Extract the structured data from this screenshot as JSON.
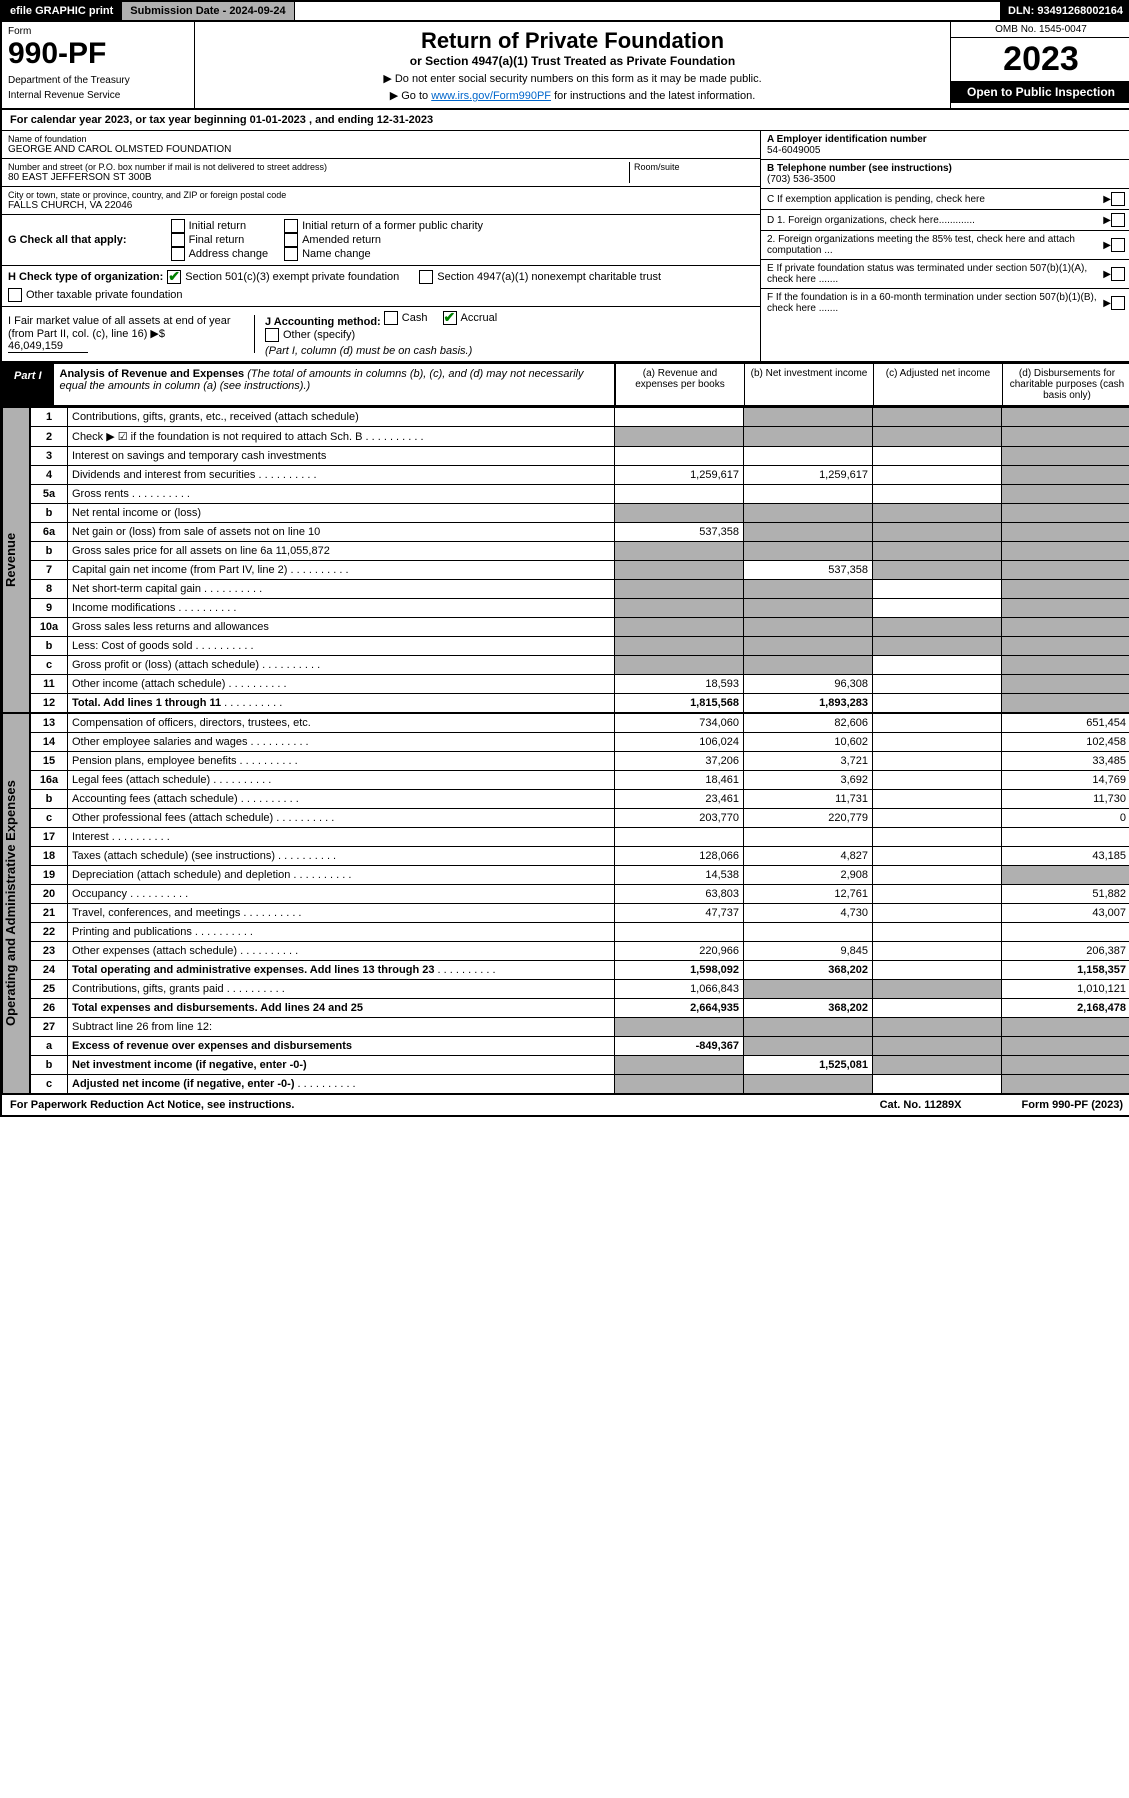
{
  "top": {
    "efile": "efile GRAPHIC print",
    "subdate": "Submission Date - 2024-09-24",
    "dln": "DLN: 93491268002164"
  },
  "header": {
    "form": "Form",
    "num": "990-PF",
    "dept": "Department of the Treasury",
    "irs": "Internal Revenue Service",
    "title": "Return of Private Foundation",
    "sub": "or Section 4947(a)(1) Trust Treated as Private Foundation",
    "note1": "▶ Do not enter social security numbers on this form as it may be made public.",
    "note2": "▶ Go to ",
    "link": "www.irs.gov/Form990PF",
    "note3": " for instructions and the latest information.",
    "omb": "OMB No. 1545-0047",
    "year": "2023",
    "open": "Open to Public Inspection"
  },
  "cal": "For calendar year 2023, or tax year beginning 01-01-2023                         , and ending 12-31-2023",
  "info": {
    "name_label": "Name of foundation",
    "name": "GEORGE AND CAROL OLMSTED FOUNDATION",
    "addr_label": "Number and street (or P.O. box number if mail is not delivered to street address)",
    "addr": "80 EAST JEFFERSON ST 300B",
    "room": "Room/suite",
    "city_label": "City or town, state or province, country, and ZIP or foreign postal code",
    "city": "FALLS CHURCH, VA  22046",
    "ein_label": "A Employer identification number",
    "ein": "54-6049005",
    "tel_label": "B Telephone number (see instructions)",
    "tel": "(703) 536-3500",
    "c": "C If exemption application is pending, check here",
    "d1": "D 1. Foreign organizations, check here.............",
    "d2": "2. Foreign organizations meeting the 85% test, check here and attach computation ...",
    "e": "E If private foundation status was terminated under section 507(b)(1)(A), check here .......",
    "f": "F If the foundation is in a 60-month termination under section 507(b)(1)(B), check here ......."
  },
  "g": {
    "label": "G Check all that apply:",
    "o1": "Initial return",
    "o2": "Final return",
    "o3": "Address change",
    "o4": "Initial return of a former public charity",
    "o5": "Amended return",
    "o6": "Name change"
  },
  "h": {
    "label": "H Check type of organization:",
    "o1": "Section 501(c)(3) exempt private foundation",
    "o2": "Section 4947(a)(1) nonexempt charitable trust",
    "o3": "Other taxable private foundation"
  },
  "i": {
    "label": "I Fair market value of all assets at end of year (from Part II, col. (c), line 16) ▶$",
    "val": "46,049,159"
  },
  "j": {
    "label": "J Accounting method:",
    "o1": "Cash",
    "o2": "Accrual",
    "o3": "Other (specify)",
    "note": "(Part I, column (d) must be on cash basis.)"
  },
  "part1": {
    "tag": "Part I",
    "title": "Analysis of Revenue and Expenses",
    "note": "(The total of amounts in columns (b), (c), and (d) may not necessarily equal the amounts in column (a) (see instructions).)",
    "ca": "(a)  Revenue and expenses per books",
    "cb": "(b)  Net investment income",
    "cc": "(c)  Adjusted net income",
    "cd": "(d)  Disbursements for charitable purposes (cash basis only)"
  },
  "sides": {
    "rev": "Revenue",
    "exp": "Operating and Administrative Expenses"
  },
  "rows": [
    {
      "n": "1",
      "d": "Contributions, gifts, grants, etc., received (attach schedule)",
      "a": "",
      "b": "g",
      "c": "g",
      "dd": "g"
    },
    {
      "n": "2",
      "d": "Check ▶ ☑ if the foundation is not required to attach Sch. B",
      "a": "g",
      "b": "g",
      "c": "g",
      "dd": "g",
      "dots": true
    },
    {
      "n": "3",
      "d": "Interest on savings and temporary cash investments",
      "a": "",
      "b": "",
      "c": "",
      "dd": "g"
    },
    {
      "n": "4",
      "d": "Dividends and interest from securities",
      "a": "1,259,617",
      "b": "1,259,617",
      "c": "",
      "dd": "g",
      "dots": true
    },
    {
      "n": "5a",
      "d": "Gross rents",
      "a": "",
      "b": "",
      "c": "",
      "dd": "g",
      "dots": true
    },
    {
      "n": "b",
      "d": "Net rental income or (loss)",
      "a": "g",
      "b": "g",
      "c": "g",
      "dd": "g"
    },
    {
      "n": "6a",
      "d": "Net gain or (loss) from sale of assets not on line 10",
      "a": "537,358",
      "b": "g",
      "c": "g",
      "dd": "g"
    },
    {
      "n": "b",
      "d": "Gross sales price for all assets on line 6a           11,055,872",
      "a": "g",
      "b": "g",
      "c": "g",
      "dd": "g"
    },
    {
      "n": "7",
      "d": "Capital gain net income (from Part IV, line 2)",
      "a": "g",
      "b": "537,358",
      "c": "g",
      "dd": "g",
      "dots": true
    },
    {
      "n": "8",
      "d": "Net short-term capital gain",
      "a": "g",
      "b": "g",
      "c": "",
      "dd": "g",
      "dots": true
    },
    {
      "n": "9",
      "d": "Income modifications",
      "a": "g",
      "b": "g",
      "c": "",
      "dd": "g",
      "dots": true
    },
    {
      "n": "10a",
      "d": "Gross sales less returns and allowances",
      "a": "g",
      "b": "g",
      "c": "g",
      "dd": "g"
    },
    {
      "n": "b",
      "d": "Less: Cost of goods sold",
      "a": "g",
      "b": "g",
      "c": "g",
      "dd": "g",
      "dots": true
    },
    {
      "n": "c",
      "d": "Gross profit or (loss) (attach schedule)",
      "a": "g",
      "b": "g",
      "c": "",
      "dd": "g",
      "dots": true
    },
    {
      "n": "11",
      "d": "Other income (attach schedule)",
      "a": "18,593",
      "b": "96,308",
      "c": "",
      "dd": "g",
      "dots": true
    },
    {
      "n": "12",
      "d": "Total. Add lines 1 through 11",
      "a": "1,815,568",
      "b": "1,893,283",
      "c": "",
      "dd": "g",
      "dots": true,
      "bold": true
    }
  ],
  "exprows": [
    {
      "n": "13",
      "d": "Compensation of officers, directors, trustees, etc.",
      "a": "734,060",
      "b": "82,606",
      "c": "",
      "dd": "651,454"
    },
    {
      "n": "14",
      "d": "Other employee salaries and wages",
      "a": "106,024",
      "b": "10,602",
      "c": "",
      "dd": "102,458",
      "dots": true
    },
    {
      "n": "15",
      "d": "Pension plans, employee benefits",
      "a": "37,206",
      "b": "3,721",
      "c": "",
      "dd": "33,485",
      "dots": true
    },
    {
      "n": "16a",
      "d": "Legal fees (attach schedule)",
      "a": "18,461",
      "b": "3,692",
      "c": "",
      "dd": "14,769",
      "dots": true
    },
    {
      "n": "b",
      "d": "Accounting fees (attach schedule)",
      "a": "23,461",
      "b": "11,731",
      "c": "",
      "dd": "11,730",
      "dots": true
    },
    {
      "n": "c",
      "d": "Other professional fees (attach schedule)",
      "a": "203,770",
      "b": "220,779",
      "c": "",
      "dd": "0",
      "dots": true
    },
    {
      "n": "17",
      "d": "Interest",
      "a": "",
      "b": "",
      "c": "",
      "dd": "",
      "dots": true
    },
    {
      "n": "18",
      "d": "Taxes (attach schedule) (see instructions)",
      "a": "128,066",
      "b": "4,827",
      "c": "",
      "dd": "43,185",
      "dots": true
    },
    {
      "n": "19",
      "d": "Depreciation (attach schedule) and depletion",
      "a": "14,538",
      "b": "2,908",
      "c": "",
      "dd": "g",
      "dots": true
    },
    {
      "n": "20",
      "d": "Occupancy",
      "a": "63,803",
      "b": "12,761",
      "c": "",
      "dd": "51,882",
      "dots": true
    },
    {
      "n": "21",
      "d": "Travel, conferences, and meetings",
      "a": "47,737",
      "b": "4,730",
      "c": "",
      "dd": "43,007",
      "dots": true
    },
    {
      "n": "22",
      "d": "Printing and publications",
      "a": "",
      "b": "",
      "c": "",
      "dd": "",
      "dots": true
    },
    {
      "n": "23",
      "d": "Other expenses (attach schedule)",
      "a": "220,966",
      "b": "9,845",
      "c": "",
      "dd": "206,387",
      "dots": true
    },
    {
      "n": "24",
      "d": "Total operating and administrative expenses. Add lines 13 through 23",
      "a": "1,598,092",
      "b": "368,202",
      "c": "",
      "dd": "1,158,357",
      "dots": true,
      "bold": true
    },
    {
      "n": "25",
      "d": "Contributions, gifts, grants paid",
      "a": "1,066,843",
      "b": "g",
      "c": "g",
      "dd": "1,010,121",
      "dots": true
    },
    {
      "n": "26",
      "d": "Total expenses and disbursements. Add lines 24 and 25",
      "a": "2,664,935",
      "b": "368,202",
      "c": "",
      "dd": "2,168,478",
      "bold": true
    },
    {
      "n": "27",
      "d": "Subtract line 26 from line 12:",
      "a": "g",
      "b": "g",
      "c": "g",
      "dd": "g"
    },
    {
      "n": "a",
      "d": "Excess of revenue over expenses and disbursements",
      "a": "-849,367",
      "b": "g",
      "c": "g",
      "dd": "g",
      "bold": true
    },
    {
      "n": "b",
      "d": "Net investment income (if negative, enter -0-)",
      "a": "g",
      "b": "1,525,081",
      "c": "g",
      "dd": "g",
      "bold": true
    },
    {
      "n": "c",
      "d": "Adjusted net income (if negative, enter -0-)",
      "a": "g",
      "b": "g",
      "c": "",
      "dd": "g",
      "bold": true,
      "dots": true
    }
  ],
  "footer": {
    "left": "For Paperwork Reduction Act Notice, see instructions.",
    "mid": "Cat. No. 11289X",
    "right": "Form 990-PF (2023)"
  }
}
